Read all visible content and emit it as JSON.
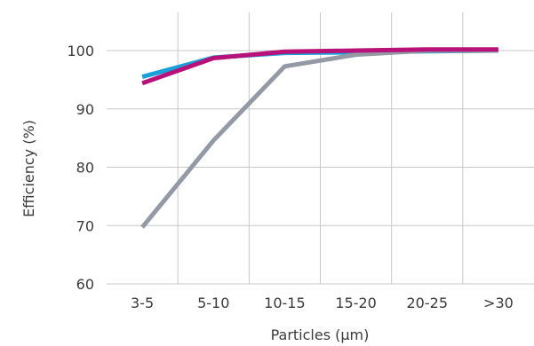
{
  "chart_data": {
    "type": "line",
    "title": "",
    "xlabel": "Particles (µm)",
    "ylabel": "Efficiency (%)",
    "categories": [
      "3-5",
      "5-10",
      "10-15",
      "15-20",
      "20-25",
      ">30"
    ],
    "ylim": [
      60,
      100
    ],
    "yticks": [
      60,
      70,
      80,
      90,
      100
    ],
    "grid": "vertical and horizontal",
    "legend": "none",
    "series": [
      {
        "color": "#1aa0d8",
        "values": [
          95.5,
          98.8,
          99.6,
          99.7,
          99.9,
          100.0
        ]
      },
      {
        "color": "#939aa6",
        "values": [
          69.7,
          84.6,
          97.3,
          99.3,
          100.0,
          100.0
        ]
      },
      {
        "color": "#b8127a",
        "values": [
          94.4,
          98.7,
          99.8,
          100.0,
          100.2,
          100.2
        ]
      }
    ]
  }
}
